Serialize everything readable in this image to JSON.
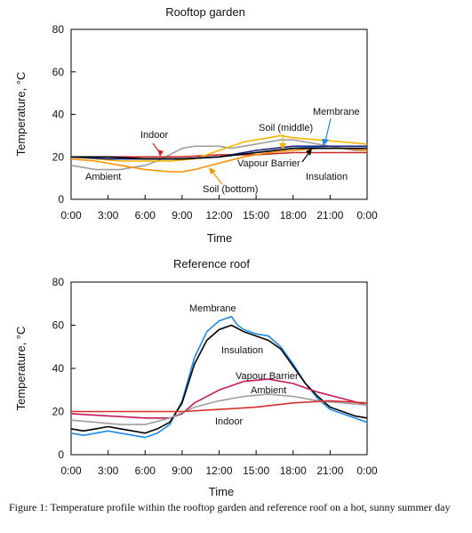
{
  "caption": "Figure 1: Temperature profile within the rooftop garden and reference roof on a hot, sunny summer day",
  "chart_data": [
    {
      "type": "line",
      "title": "Rooftop garden",
      "xlabel": "Time",
      "ylabel": "Temperature, °C",
      "xlim": [
        0,
        24
      ],
      "ylim": [
        0,
        80
      ],
      "yticks": [
        0,
        20,
        40,
        60,
        80
      ],
      "xticks": [
        "0:00",
        "3:00",
        "6:00",
        "9:00",
        "12:00",
        "15:00",
        "18:00",
        "21:00",
        "0:00"
      ],
      "grid": false,
      "legend": "none (inline annotations)",
      "series": [
        {
          "name": "Ambient",
          "color": "#9e9e9e",
          "x": [
            0,
            1,
            2,
            3,
            4,
            5,
            6,
            7,
            8,
            9,
            10,
            11,
            12,
            13,
            14,
            15,
            16,
            17,
            18,
            19,
            20,
            21,
            22,
            23,
            24
          ],
          "y": [
            16,
            15,
            14,
            14,
            14,
            15,
            16,
            18,
            21,
            24,
            25,
            25,
            25,
            24,
            25,
            26,
            27,
            28,
            28,
            27,
            26,
            25,
            24,
            23,
            23
          ]
        },
        {
          "name": "Indoor",
          "color": "#c62828",
          "x": [
            0,
            3,
            6,
            9,
            12,
            15,
            18,
            21,
            24
          ],
          "y": [
            20,
            20,
            20,
            20,
            21,
            21,
            22,
            22,
            22
          ]
        },
        {
          "name": "Soil (bottom)",
          "color": "#ff8f00",
          "x": [
            0,
            2,
            4,
            6,
            8,
            9,
            10,
            12,
            14,
            16,
            18,
            20,
            22,
            24
          ],
          "y": [
            19,
            18,
            16,
            14,
            13,
            13,
            14,
            17,
            20,
            22,
            23,
            24,
            24,
            23
          ]
        },
        {
          "name": "Soil (middle)",
          "color": "#f4b400",
          "x": [
            0,
            2,
            4,
            6,
            8,
            10,
            12,
            14,
            16,
            17,
            18,
            20,
            22,
            24
          ],
          "y": [
            20,
            19,
            18,
            18,
            18,
            19,
            23,
            27,
            29,
            30,
            29,
            28,
            27,
            26
          ]
        },
        {
          "name": "Membrane",
          "color": "#1e88e5",
          "x": [
            0,
            3,
            6,
            9,
            12,
            15,
            18,
            21,
            24
          ],
          "y": [
            20,
            19,
            19,
            19,
            20,
            22,
            24,
            25,
            25
          ]
        },
        {
          "name": "Insulation",
          "color": "#1a237e",
          "x": [
            0,
            3,
            6,
            9,
            12,
            15,
            18,
            21,
            24
          ],
          "y": [
            20,
            19,
            19,
            19,
            20,
            23,
            25,
            25,
            25
          ]
        },
        {
          "name": "Vapour Barrier",
          "color": "#000000",
          "x": [
            0,
            3,
            6,
            9,
            12,
            15,
            18,
            21,
            24
          ],
          "y": [
            20,
            20,
            19,
            19,
            20,
            22,
            24,
            24,
            24
          ]
        }
      ],
      "annotations": [
        "Indoor",
        "Ambient",
        "Soil (middle)",
        "Membrane",
        "Vapour Barrier",
        "Insulation",
        "Soil (bottom)"
      ]
    },
    {
      "type": "line",
      "title": "Reference roof",
      "xlabel": "Time",
      "ylabel": "Temperature, °C",
      "xlim": [
        0,
        24
      ],
      "ylim": [
        0,
        80
      ],
      "yticks": [
        0,
        20,
        40,
        60,
        80
      ],
      "xticks": [
        "0:00",
        "3:00",
        "6:00",
        "9:00",
        "12:00",
        "15:00",
        "18:00",
        "21:00",
        "0:00"
      ],
      "grid": false,
      "legend": "none (inline annotations)",
      "series": [
        {
          "name": "Membrane",
          "color": "#1e88e5",
          "x": [
            0,
            1,
            2,
            3,
            4,
            5,
            6,
            7,
            8,
            9,
            10,
            11,
            12,
            13,
            13.5,
            14,
            15,
            16,
            17,
            18,
            19,
            20,
            21,
            22,
            23,
            24
          ],
          "y": [
            10,
            9,
            10,
            11,
            10,
            9,
            8,
            10,
            14,
            25,
            45,
            57,
            62,
            64,
            60,
            58,
            56,
            55,
            50,
            42,
            33,
            26,
            21,
            19,
            17,
            15
          ]
        },
        {
          "name": "Insulation",
          "color": "#000000",
          "x": [
            0,
            1,
            2,
            3,
            4,
            5,
            6,
            7,
            8,
            9,
            10,
            11,
            12,
            13,
            14,
            15,
            16,
            17,
            18,
            19,
            20,
            21,
            22,
            23,
            24
          ],
          "y": [
            12,
            11,
            12,
            13,
            12,
            11,
            10,
            12,
            15,
            24,
            42,
            53,
            58,
            60,
            57,
            55,
            53,
            49,
            41,
            33,
            27,
            22,
            20,
            18,
            17
          ]
        },
        {
          "name": "Vapour Barrier",
          "color": "#c2185b",
          "x": [
            0,
            3,
            6,
            8,
            9,
            10,
            12,
            14,
            16,
            18,
            20,
            22,
            24
          ],
          "y": [
            19,
            18,
            17,
            17,
            19,
            24,
            30,
            34,
            35,
            33,
            29,
            26,
            23
          ]
        },
        {
          "name": "Ambient",
          "color": "#9e9e9e",
          "x": [
            0,
            2,
            4,
            6,
            8,
            10,
            12,
            14,
            16,
            18,
            20,
            22,
            24
          ],
          "y": [
            16,
            15,
            14,
            14,
            17,
            22,
            25,
            27,
            28,
            27,
            25,
            24,
            23
          ]
        },
        {
          "name": "Indoor",
          "color": "#d32f2f",
          "x": [
            0,
            3,
            6,
            9,
            12,
            15,
            18,
            21,
            24
          ],
          "y": [
            20,
            20,
            20,
            20,
            21,
            22,
            24,
            25,
            24
          ]
        }
      ],
      "annotations": [
        "Membrane",
        "Insulation",
        "Vapour Barrier",
        "Ambient",
        "Indoor"
      ]
    }
  ]
}
